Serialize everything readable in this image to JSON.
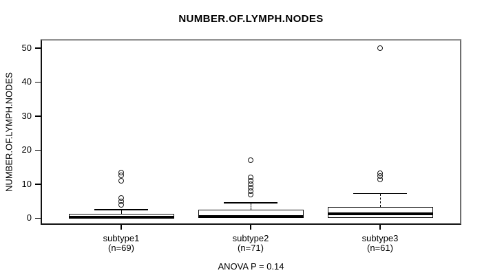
{
  "chart_data": {
    "type": "boxplot",
    "title": "NUMBER.OF.LYMPH.NODES",
    "ylabel": "NUMBER.OF.LYMPH.NODES",
    "footer": "ANOVA P = 0.14",
    "y_ticks": [
      0,
      10,
      20,
      30,
      40,
      50
    ],
    "ylim": [
      -2,
      52.5
    ],
    "grid": false,
    "legend": "none",
    "colors": {
      "box_fill": "#ffffff",
      "line": "#000000",
      "background": "#ffffff"
    },
    "groups": [
      {
        "label": "subtype1",
        "n_label": "(n=69)",
        "q1": 0,
        "median": 0.3,
        "q3": 1.25,
        "whisker_low": 0,
        "whisker_high": 2.5,
        "outliers": [
          4,
          5,
          6,
          11,
          12.5,
          13.5
        ]
      },
      {
        "label": "subtype2",
        "n_label": "(n=71)",
        "q1": 0,
        "median": 0.5,
        "q3": 2.5,
        "whisker_low": 0,
        "whisker_high": 4.5,
        "outliers": [
          7,
          8,
          9,
          10,
          11,
          12,
          17
        ]
      },
      {
        "label": "subtype3",
        "n_label": "(n=61)",
        "q1": 0,
        "median": 1.2,
        "q3": 3.2,
        "whisker_low": 0,
        "whisker_high": 7.2,
        "outliers": [
          11.4,
          12.4,
          13.3,
          50
        ]
      }
    ]
  }
}
